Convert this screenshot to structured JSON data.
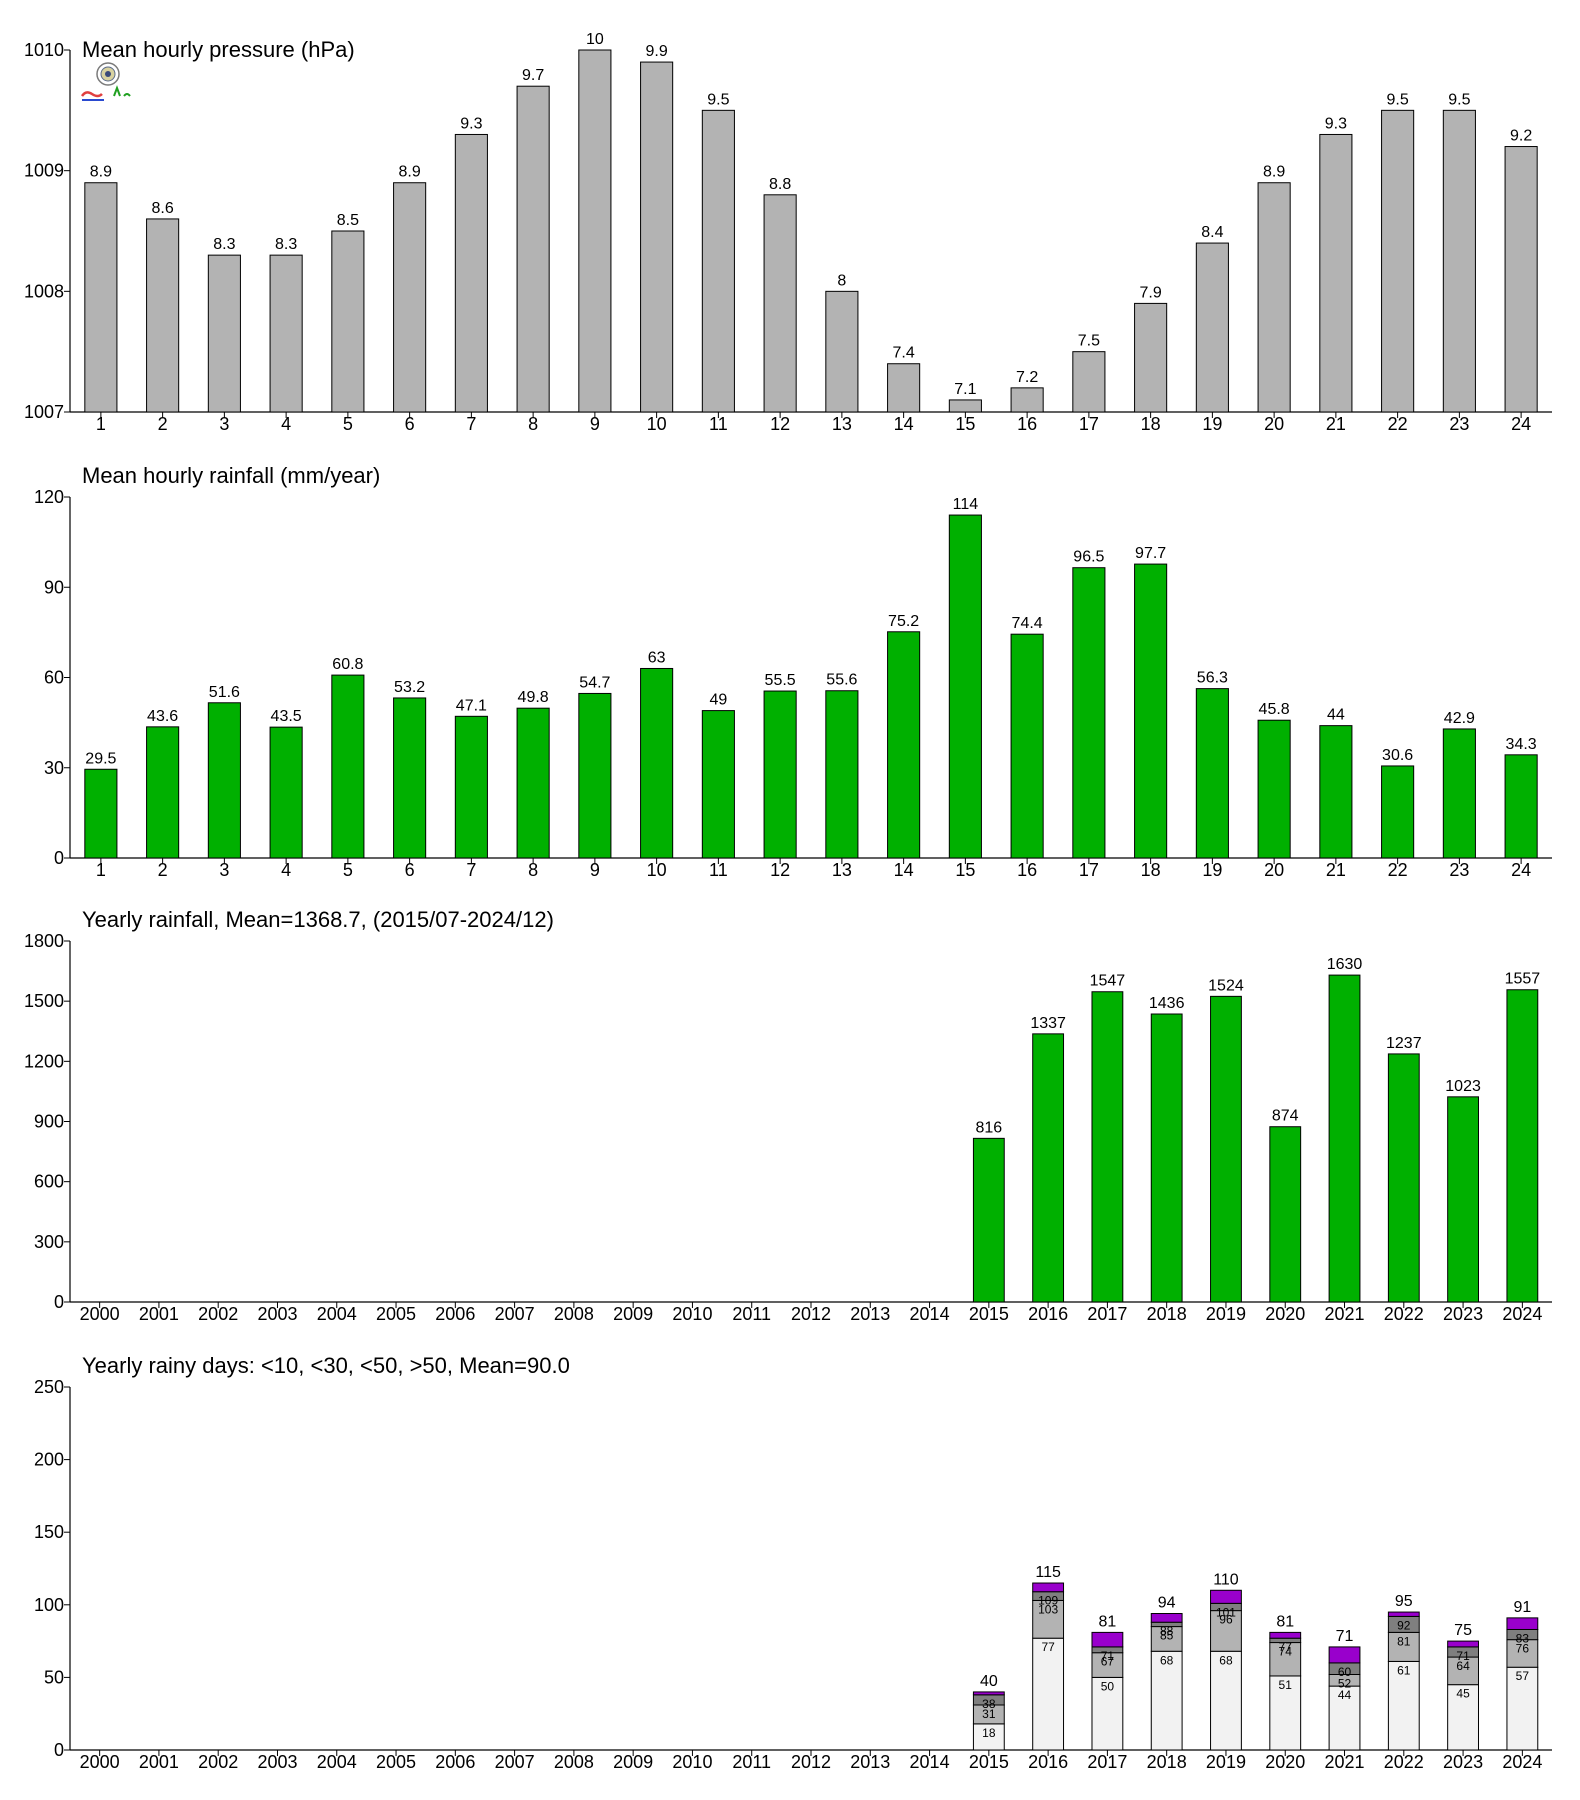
{
  "chart_data": [
    {
      "type": "bar",
      "title": "Mean hourly pressure (hPa)",
      "xlabel": "",
      "ylabel": "",
      "categories": [
        "1",
        "2",
        "3",
        "4",
        "5",
        "6",
        "7",
        "8",
        "9",
        "10",
        "11",
        "12",
        "13",
        "14",
        "15",
        "16",
        "17",
        "18",
        "19",
        "20",
        "21",
        "22",
        "23",
        "24"
      ],
      "values": [
        1008.9,
        1008.6,
        1008.3,
        1008.3,
        1008.5,
        1008.9,
        1009.3,
        1009.7,
        1010.0,
        1009.9,
        1009.5,
        1008.8,
        1008.0,
        1007.4,
        1007.1,
        1007.2,
        1007.5,
        1007.9,
        1008.4,
        1008.9,
        1009.3,
        1009.5,
        1009.5,
        1009.2
      ],
      "data_labels": [
        "8.9",
        "8.6",
        "8.3",
        "8.3",
        "8.5",
        "8.9",
        "9.3",
        "9.7",
        "10",
        "9.9",
        "9.5",
        "8.8",
        "8",
        "7.4",
        "7.1",
        "7.2",
        "7.5",
        "7.9",
        "8.4",
        "8.9",
        "9.3",
        "9.5",
        "9.5",
        "9.2"
      ],
      "ylim": [
        1007,
        1010
      ],
      "yticks": [
        "1007",
        "1008",
        "1009",
        "1010"
      ],
      "color": "#b3b3b3",
      "grid": false
    },
    {
      "type": "bar",
      "title": "Mean hourly rainfall (mm/year)",
      "xlabel": "",
      "ylabel": "",
      "categories": [
        "1",
        "2",
        "3",
        "4",
        "5",
        "6",
        "7",
        "8",
        "9",
        "10",
        "11",
        "12",
        "13",
        "14",
        "15",
        "16",
        "17",
        "18",
        "19",
        "20",
        "21",
        "22",
        "23",
        "24"
      ],
      "values": [
        29.5,
        43.6,
        51.6,
        43.5,
        60.8,
        53.2,
        47.1,
        49.8,
        54.7,
        63,
        49,
        55.5,
        55.6,
        75.2,
        114,
        74.4,
        96.5,
        97.7,
        56.3,
        45.8,
        44,
        30.6,
        42.9,
        34.3
      ],
      "data_labels": [
        "29.5",
        "43.6",
        "51.6",
        "43.5",
        "60.8",
        "53.2",
        "47.1",
        "49.8",
        "54.7",
        "63",
        "49",
        "55.5",
        "55.6",
        "75.2",
        "114",
        "74.4",
        "96.5",
        "97.7",
        "56.3",
        "45.8",
        "44",
        "30.6",
        "42.9",
        "34.3"
      ],
      "ylim": [
        0,
        120
      ],
      "yticks": [
        "0",
        "30",
        "60",
        "90",
        "120"
      ],
      "color": "#00b000",
      "grid": false
    },
    {
      "type": "bar",
      "title": "Yearly rainfall, Mean=1368.7, (2015/07-2024/12)",
      "xlabel": "",
      "ylabel": "",
      "categories": [
        "2000",
        "2001",
        "2002",
        "2003",
        "2004",
        "2005",
        "2006",
        "2007",
        "2008",
        "2009",
        "2010",
        "2011",
        "2012",
        "2013",
        "2014",
        "2015",
        "2016",
        "2017",
        "2018",
        "2019",
        "2020",
        "2021",
        "2022",
        "2023",
        "2024"
      ],
      "values": [
        null,
        null,
        null,
        null,
        null,
        null,
        null,
        null,
        null,
        null,
        null,
        null,
        null,
        null,
        null,
        816,
        1337,
        1547,
        1436,
        1524,
        874,
        1630,
        1237,
        1023,
        1557
      ],
      "data_labels": [
        "",
        "",
        "",
        "",
        "",
        "",
        "",
        "",
        "",
        "",
        "",
        "",
        "",
        "",
        "",
        "816",
        "1337",
        "1547",
        "1436",
        "1524",
        "874",
        "1630",
        "1237",
        "1023",
        "1557"
      ],
      "ylim": [
        0,
        1800
      ],
      "yticks": [
        "0",
        "300",
        "600",
        "900",
        "1200",
        "1500",
        "1800"
      ],
      "color": "#00b000",
      "grid": false
    },
    {
      "type": "bar",
      "stacked": true,
      "title": "Yearly rainy days: <10, <30, <50, >50, Mean=90.0",
      "xlabel": "",
      "ylabel": "",
      "categories": [
        "2000",
        "2001",
        "2002",
        "2003",
        "2004",
        "2005",
        "2006",
        "2007",
        "2008",
        "2009",
        "2010",
        "2011",
        "2012",
        "2013",
        "2014",
        "2015",
        "2016",
        "2017",
        "2018",
        "2019",
        "2020",
        "2021",
        "2022",
        "2023",
        "2024"
      ],
      "cumulative": {
        "lt10": [
          null,
          null,
          null,
          null,
          null,
          null,
          null,
          null,
          null,
          null,
          null,
          null,
          null,
          null,
          null,
          18,
          77,
          50,
          68,
          68,
          51,
          44,
          61,
          45,
          57
        ],
        "lt30": [
          null,
          null,
          null,
          null,
          null,
          null,
          null,
          null,
          null,
          null,
          null,
          null,
          null,
          null,
          null,
          31,
          103,
          67,
          85,
          96,
          74,
          52,
          81,
          64,
          76
        ],
        "lt50": [
          null,
          null,
          null,
          null,
          null,
          null,
          null,
          null,
          null,
          null,
          null,
          null,
          null,
          null,
          null,
          38,
          109,
          71,
          88,
          101,
          77,
          60,
          92,
          71,
          83
        ],
        "total": [
          null,
          null,
          null,
          null,
          null,
          null,
          null,
          null,
          null,
          null,
          null,
          null,
          null,
          null,
          null,
          40,
          115,
          81,
          94,
          110,
          81,
          71,
          95,
          75,
          91
        ]
      },
      "segment_labels": {
        "lt10": [
          "",
          "",
          "",
          "",
          "",
          "",
          "",
          "",
          "",
          "",
          "",
          "",
          "",
          "",
          "",
          "18",
          "77",
          "50",
          "68",
          "68",
          "51",
          "44",
          "61",
          "45",
          "57"
        ],
        "lt30": [
          "",
          "",
          "",
          "",
          "",
          "",
          "",
          "",
          "",
          "",
          "",
          "",
          "",
          "",
          "",
          "31",
          "103",
          "67",
          "85",
          "96",
          "74",
          "52",
          "81",
          "64",
          "76"
        ],
        "lt50": [
          "",
          "",
          "",
          "",
          "",
          "",
          "",
          "",
          "",
          "",
          "",
          "",
          "",
          "",
          "",
          "38",
          "109",
          "71",
          "88",
          "101",
          "77",
          "60",
          "92",
          "71",
          "83"
        ]
      },
      "total_labels": [
        "",
        "",
        "",
        "",
        "",
        "",
        "",
        "",
        "",
        "",
        "",
        "",
        "",
        "",
        "",
        "40",
        "115",
        "81",
        "94",
        "110",
        "81",
        "71",
        "95",
        "75",
        "91"
      ],
      "ylim": [
        0,
        250
      ],
      "yticks": [
        "0",
        "50",
        "100",
        "150",
        "200",
        "250"
      ],
      "colors": {
        "lt10": "#f2f2f2",
        "lt30": "#b3b3b3",
        "lt50": "#7f7f7f",
        "gt50": "#9900cc"
      },
      "grid": false
    }
  ]
}
